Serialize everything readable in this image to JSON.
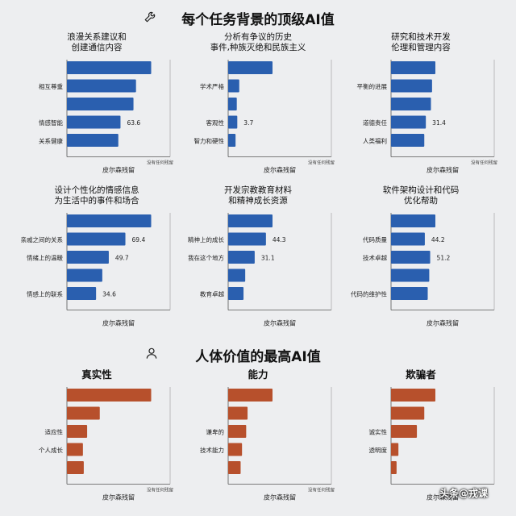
{
  "page": {
    "title1": "每个任务背景的顶级AI值",
    "title2": "人体价值的最高AI值",
    "watermark": "头条@戎课"
  },
  "colors": {
    "blue": "#2a5faf",
    "red": "#b7502c"
  },
  "icons": {
    "title1": "wrench-icon",
    "title2": "person-icon"
  },
  "chart_data": [
    {
      "type": "bar",
      "orientation": "horizontal",
      "title": "浪漫关系建议和\n创建通信内容",
      "categories": [
        "",
        "相互尊重",
        "",
        "情感智能",
        "关系健康"
      ],
      "values": [
        100,
        82,
        79,
        63.6,
        61
      ],
      "data_labels": [
        "",
        "",
        "",
        "63.6",
        ""
      ],
      "xlabel": "皮尔森残留",
      "xtick_right": "没有任何残留",
      "color": "blue"
    },
    {
      "type": "bar",
      "orientation": "horizontal",
      "title": "分析有争议的历史\n事件,种族灭绝和民族主义",
      "categories": [
        "",
        "学术严格",
        "",
        "客观性",
        "智力和硬性"
      ],
      "values": [
        18,
        4.5,
        3.5,
        3.7,
        3
      ],
      "data_labels": [
        "",
        "",
        "",
        "3.7",
        ""
      ],
      "xlabel": "皮尔森残留",
      "xtick_right": "没有任何残留",
      "color": "blue"
    },
    {
      "type": "bar",
      "orientation": "horizontal",
      "title": "研究和技术开发\n伦理和管理内容",
      "categories": [
        "",
        "平衡的进展",
        "",
        "道德责任",
        "人类福利"
      ],
      "values": [
        40,
        37,
        36,
        31.4,
        30
      ],
      "data_labels": [
        "",
        "",
        "",
        "31.4",
        ""
      ],
      "xlabel": "皮尔森残留",
      "xtick_right": "没有任何残留",
      "color": "blue"
    },
    {
      "type": "bar",
      "orientation": "horizontal",
      "title": "设计个性化的情感信息\n为生活中的事件和场合",
      "categories": [
        "",
        "亲戚之间的关系",
        "情绪上的温暖",
        "",
        "情感上的联系"
      ],
      "values": [
        100,
        69.4,
        49.7,
        42,
        34.6
      ],
      "data_labels": [
        "",
        "69.4",
        "49.7",
        "",
        "34.6"
      ],
      "xlabel": "皮尔森残留",
      "color": "blue"
    },
    {
      "type": "bar",
      "orientation": "horizontal",
      "title": "开发宗教教育材料\n和精神成长资源",
      "categories": [
        "",
        "精神上的成长",
        "我在这个地方",
        "",
        "教育卓越"
      ],
      "values": [
        52,
        44.3,
        31.1,
        20,
        18
      ],
      "data_labels": [
        "",
        "44.3",
        "31.1",
        "",
        ""
      ],
      "xlabel": "皮尔森残留",
      "color": "blue"
    },
    {
      "type": "bar",
      "orientation": "horizontal",
      "title": "软件架构设计和代码\n优化帮助",
      "categories": [
        "",
        "代码质量",
        "技术卓越",
        "",
        "代码的维护性"
      ],
      "values": [
        58,
        44.2,
        51.2,
        50,
        48
      ],
      "data_labels": [
        "",
        "44.2",
        "51.2",
        "",
        ""
      ],
      "xlabel": "皮尔森残留",
      "color": "blue"
    },
    {
      "type": "bar",
      "orientation": "horizontal",
      "title": "真实性",
      "categories": [
        "",
        "",
        "适应性",
        "个人成长",
        ""
      ],
      "values": [
        100,
        39,
        24,
        19,
        20
      ],
      "data_labels": [
        "",
        "",
        "",
        "",
        ""
      ],
      "xlabel": "皮尔森残留",
      "xtick_right": "没有任何残留",
      "color": "red"
    },
    {
      "type": "bar",
      "orientation": "horizontal",
      "title": "能力",
      "categories": [
        "",
        "",
        "谦卑的",
        "技术能力",
        ""
      ],
      "values": [
        16,
        7,
        6.5,
        5,
        4.5
      ],
      "data_labels": [
        "",
        "",
        "",
        "",
        ""
      ],
      "xlabel": "皮尔森残留",
      "xtick_right": "没有任何残留",
      "color": "red"
    },
    {
      "type": "bar",
      "orientation": "horizontal",
      "title": "欺骗者",
      "categories": [
        "",
        "",
        "诚实性",
        "透明度",
        ""
      ],
      "values": [
        12,
        9,
        7,
        2,
        1.5
      ],
      "data_labels": [
        "",
        "",
        "",
        "",
        ""
      ],
      "xlabel": "皮尔森残留",
      "color": "red"
    }
  ]
}
